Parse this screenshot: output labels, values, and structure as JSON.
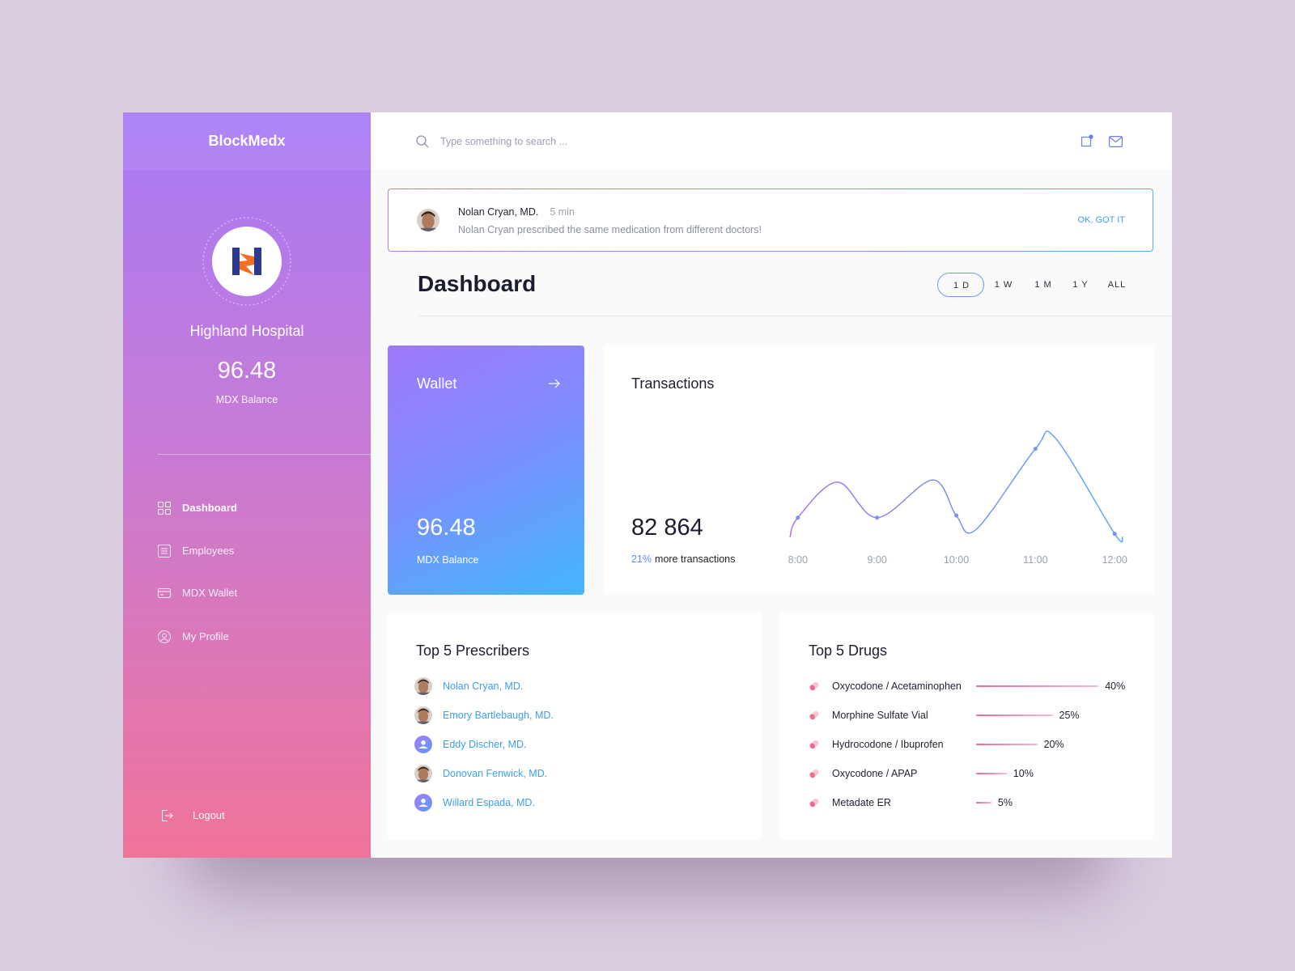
{
  "sidebar": {
    "brand": "BlockMedx",
    "hospital": "Highland Hospital",
    "balance": "96.48",
    "balance_label": "MDX Balance",
    "nav": [
      "Dashboard",
      "Employees",
      "MDX Wallet",
      "My Profile"
    ],
    "active_nav": 0,
    "logout": "Logout"
  },
  "header": {
    "search_placeholder": "Type something to search ..."
  },
  "notification": {
    "name": "Nolan Cryan, MD.",
    "time": "5 min",
    "message": "Nolan Cryan prescribed the same medication from different doctors!",
    "action": "OK, GOT IT"
  },
  "dashboard": {
    "title": "Dashboard",
    "filters": [
      "1 D",
      "1 W",
      "1 M",
      "1 Y",
      "ALL"
    ],
    "active_filter": 0
  },
  "wallet": {
    "title": "Wallet",
    "balance": "96.48",
    "balance_label": "MDX Balance"
  },
  "transactions": {
    "title": "Transactions",
    "total": "82 864",
    "change": "21%",
    "change_text": "more transactions",
    "chart": {
      "type": "line",
      "x": [
        7.9,
        8,
        8.5,
        9,
        9.7,
        10,
        10.25,
        11,
        11.25,
        12,
        12.1
      ],
      "values": [
        4,
        22,
        55,
        22,
        57,
        24,
        11,
        86,
        96,
        7,
        4
      ],
      "xlim": [
        7.9,
        12.1
      ],
      "ylim": [
        0,
        100
      ],
      "xticks": [
        {
          "value": 8,
          "label": "8:00"
        },
        {
          "value": 9,
          "label": "9:00"
        },
        {
          "value": 10,
          "label": "10:00"
        },
        {
          "value": 11,
          "label": "11:00"
        },
        {
          "value": 12,
          "label": "12:00"
        }
      ],
      "color": [
        "#a36cf4",
        "#46a9fb"
      ]
    }
  },
  "prescribers": {
    "title": "Top 5 Prescribers",
    "items": [
      {
        "name": "Nolan Cryan, MD.",
        "avatar": "photo"
      },
      {
        "name": "Emory Bartlebaugh, MD.",
        "avatar": "photo"
      },
      {
        "name": "Eddy Discher, MD.",
        "avatar": "placeholder"
      },
      {
        "name": "Donovan Fenwick, MD.",
        "avatar": "photo"
      },
      {
        "name": "Willard Espada, MD.",
        "avatar": "placeholder"
      }
    ]
  },
  "drugs": {
    "title": "Top 5 Drugs",
    "items": [
      {
        "name": "Oxycodone / Acetaminophen",
        "value": 40,
        "label": "40%"
      },
      {
        "name": "Morphine Sulfate Vial",
        "value": 25,
        "label": "25%"
      },
      {
        "name": "Hydrocodone / Ibuprofen",
        "value": 20,
        "label": "20%"
      },
      {
        "name": "Oxycodone / APAP",
        "value": 10,
        "label": "10%"
      },
      {
        "name": "Metadate ER",
        "value": 5,
        "label": "5%"
      }
    ]
  }
}
